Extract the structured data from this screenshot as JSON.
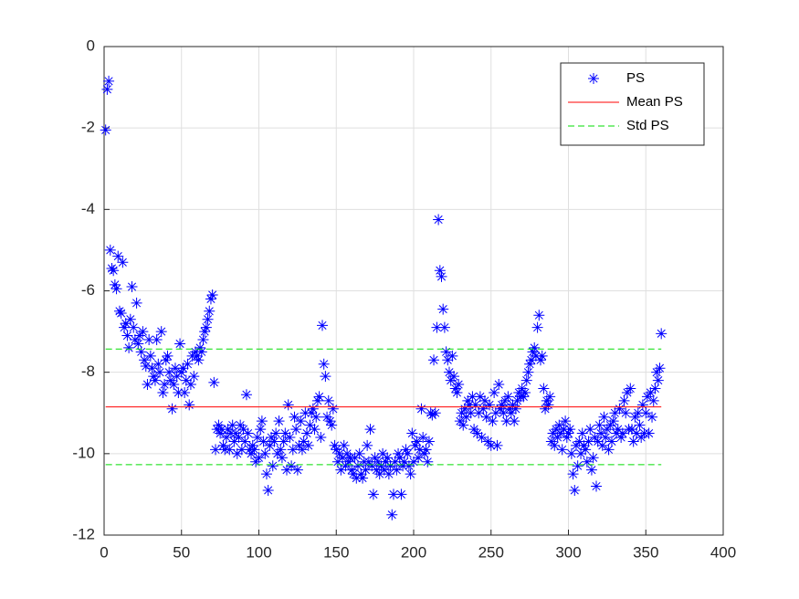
{
  "chart_data": {
    "type": "scatter",
    "xlim": [
      0,
      400
    ],
    "xticks": [
      0,
      50,
      100,
      150,
      200,
      250,
      300,
      350,
      400
    ],
    "ylim": [
      -12,
      0
    ],
    "yticks": [
      -12,
      -10,
      -8,
      -6,
      -4,
      -2,
      0
    ],
    "grid": true,
    "legend": "upper right",
    "series": [
      {
        "name": "PS",
        "color": "#0000ff",
        "marker": "*",
        "x": [
          1,
          2,
          3,
          4,
          5,
          6,
          7,
          8,
          9,
          10,
          11,
          12,
          13,
          14,
          15,
          16,
          17,
          18,
          19,
          20,
          21,
          22,
          23,
          24,
          25,
          26,
          27,
          28,
          29,
          30,
          31,
          32,
          33,
          34,
          35,
          36,
          37,
          38,
          39,
          40,
          41,
          42,
          43,
          44,
          45,
          46,
          47,
          48,
          49,
          50,
          51,
          52,
          53,
          54,
          55,
          56,
          57,
          58,
          59,
          60,
          61,
          62,
          63,
          64,
          65,
          66,
          67,
          68,
          69,
          70,
          71,
          72,
          73,
          74,
          75,
          76,
          77,
          78,
          79,
          80,
          81,
          82,
          83,
          84,
          85,
          86,
          87,
          88,
          89,
          90,
          91,
          92,
          93,
          94,
          95,
          96,
          97,
          98,
          99,
          100,
          101,
          102,
          103,
          104,
          105,
          106,
          107,
          108,
          109,
          110,
          111,
          112,
          113,
          114,
          115,
          116,
          117,
          118,
          119,
          120,
          121,
          122,
          123,
          124,
          125,
          126,
          127,
          128,
          129,
          130,
          131,
          132,
          133,
          134,
          135,
          136,
          137,
          138,
          139,
          140,
          141,
          142,
          143,
          144,
          145,
          146,
          147,
          148,
          149,
          150,
          151,
          152,
          153,
          154,
          155,
          156,
          157,
          158,
          159,
          160,
          161,
          162,
          163,
          164,
          165,
          166,
          167,
          168,
          169,
          170,
          171,
          172,
          173,
          174,
          175,
          176,
          177,
          178,
          179,
          180,
          181,
          182,
          183,
          184,
          185,
          186,
          187,
          188,
          189,
          190,
          191,
          192,
          193,
          194,
          195,
          196,
          197,
          198,
          199,
          200,
          201,
          202,
          203,
          204,
          205,
          206,
          207,
          208,
          209,
          210,
          211,
          212,
          213,
          214,
          215,
          216,
          217,
          218,
          219,
          220,
          221,
          222,
          223,
          224,
          225,
          226,
          227,
          228,
          229,
          230,
          231,
          232,
          233,
          234,
          235,
          236,
          237,
          238,
          239,
          240,
          241,
          242,
          243,
          244,
          245,
          246,
          247,
          248,
          249,
          250,
          251,
          252,
          253,
          254,
          255,
          256,
          257,
          258,
          259,
          260,
          261,
          262,
          263,
          264,
          265,
          266,
          267,
          268,
          269,
          270,
          271,
          272,
          273,
          274,
          275,
          276,
          277,
          278,
          279,
          280,
          281,
          282,
          283,
          284,
          285,
          286,
          287,
          288,
          289,
          290,
          291,
          292,
          293,
          294,
          295,
          296,
          297,
          298,
          299,
          300,
          301,
          302,
          303,
          304,
          305,
          306,
          307,
          308,
          309,
          310,
          311,
          312,
          313,
          314,
          315,
          316,
          317,
          318,
          319,
          320,
          321,
          322,
          323,
          324,
          325,
          326,
          327,
          328,
          329,
          330,
          331,
          332,
          333,
          334,
          335,
          336,
          337,
          338,
          339,
          340,
          341,
          342,
          343,
          344,
          345,
          346,
          347,
          348,
          349,
          350,
          351,
          352,
          353,
          354,
          355,
          356,
          357,
          358,
          359,
          360
        ],
        "values": [
          -2.05,
          -1.05,
          -0.85,
          -5.0,
          -5.45,
          -5.5,
          -5.85,
          -5.95,
          -5.15,
          -6.5,
          -6.55,
          -5.3,
          -6.9,
          -6.8,
          -7.1,
          -7.4,
          -6.7,
          -5.9,
          -6.9,
          -7.2,
          -6.3,
          -7.3,
          -7.1,
          -7.5,
          -7.0,
          -7.7,
          -7.85,
          -8.3,
          -7.2,
          -7.6,
          -7.9,
          -8.1,
          -8.2,
          -7.2,
          -7.8,
          -8.0,
          -7.0,
          -8.5,
          -8.3,
          -7.7,
          -7.6,
          -8.0,
          -8.2,
          -8.9,
          -8.3,
          -7.9,
          -8.1,
          -8.5,
          -7.3,
          -8.0,
          -7.9,
          -8.5,
          -8.2,
          -7.8,
          -8.8,
          -8.3,
          -7.6,
          -8.1,
          -7.5,
          -7.6,
          -7.7,
          -7.4,
          -7.5,
          -7.2,
          -7.0,
          -6.9,
          -6.7,
          -6.5,
          -6.2,
          -6.1,
          -8.25,
          -9.9,
          -9.4,
          -9.3,
          -9.5,
          -9.4,
          -9.8,
          -9.9,
          -9.6,
          -9.4,
          -9.9,
          -9.5,
          -9.3,
          -9.7,
          -9.5,
          -10.0,
          -9.6,
          -9.3,
          -9.9,
          -9.4,
          -9.7,
          -8.55,
          -9.5,
          -9.9,
          -10.0,
          -9.8,
          -9.9,
          -10.2,
          -9.6,
          -10.1,
          -9.4,
          -9.2,
          -9.7,
          -10.0,
          -10.5,
          -10.9,
          -9.8,
          -9.6,
          -10.3,
          -9.7,
          -9.5,
          -10.0,
          -9.2,
          -9.9,
          -10.1,
          -9.7,
          -9.5,
          -10.4,
          -8.8,
          -9.6,
          -10.3,
          -9.9,
          -9.1,
          -9.4,
          -10.4,
          -9.8,
          -9.2,
          -9.9,
          -9.7,
          -9.0,
          -9.5,
          -9.8,
          -9.3,
          -9.0,
          -8.9,
          -9.4,
          -9.1,
          -8.7,
          -8.6,
          -9.6,
          -6.85,
          -7.8,
          -8.1,
          -9.1,
          -8.7,
          -9.2,
          -9.3,
          -8.9,
          -9.8,
          -9.9,
          -10.2,
          -10.0,
          -10.4,
          -10.1,
          -9.8,
          -10.3,
          -10.0,
          -10.2,
          -10.1,
          -10.4,
          -10.5,
          -10.1,
          -10.6,
          -10.3,
          -10.0,
          -10.5,
          -10.6,
          -10.2,
          -10.4,
          -9.8,
          -10.2,
          -9.4,
          -10.3,
          -11.0,
          -10.1,
          -10.4,
          -10.2,
          -10.5,
          -10.3,
          -10.0,
          -10.4,
          -10.2,
          -10.1,
          -10.5,
          -10.3,
          -11.5,
          -11.0,
          -10.2,
          -10.4,
          -10.0,
          -10.1,
          -11.0,
          -10.3,
          -10.2,
          -9.9,
          -10.0,
          -10.3,
          -10.5,
          -9.5,
          -10.2,
          -9.8,
          -9.7,
          -10.1,
          -9.9,
          -8.9,
          -9.6,
          -10.0,
          -9.9,
          -10.2,
          -9.7,
          -9.0,
          -9.05,
          -7.7,
          -9.0,
          -6.9,
          -4.25,
          -5.5,
          -5.65,
          -6.45,
          -6.9,
          -7.5,
          -7.7,
          -8.0,
          -8.2,
          -7.6,
          -8.1,
          -8.4,
          -8.5,
          -8.3,
          -9.2,
          -9.0,
          -9.3,
          -8.9,
          -9.1,
          -8.7,
          -8.8,
          -9.0,
          -8.6,
          -9.4,
          -8.8,
          -9.5,
          -9.0,
          -8.6,
          -9.6,
          -8.9,
          -8.7,
          -9.1,
          -9.7,
          -8.8,
          -9.8,
          -9.2,
          -8.5,
          -9.0,
          -9.8,
          -8.3,
          -8.9,
          -8.8,
          -9.0,
          -8.7,
          -9.2,
          -8.6,
          -8.9,
          -9.0,
          -8.8,
          -9.2,
          -8.9,
          -8.7,
          -8.5,
          -8.6,
          -8.4,
          -8.6,
          -8.5,
          -8.2,
          -8.0,
          -7.8,
          -7.7,
          -7.5,
          -7.4,
          -7.6,
          -6.9,
          -6.6,
          -7.7,
          -7.6,
          -8.4,
          -8.9,
          -8.7,
          -8.8,
          -8.6,
          -9.7,
          -9.5,
          -9.8,
          -9.4,
          -9.6,
          -9.3,
          -9.5,
          -9.9,
          -9.4,
          -9.2,
          -9.6,
          -9.5,
          -9.4,
          -10.0,
          -10.5,
          -10.9,
          -9.8,
          -10.3,
          -9.7,
          -10.0,
          -9.5,
          -9.8,
          -9.9,
          -10.2,
          -9.7,
          -9.4,
          -10.4,
          -10.1,
          -9.6,
          -10.8,
          -9.7,
          -9.3,
          -9.5,
          -9.8,
          -9.1,
          -9.6,
          -9.4,
          -9.9,
          -9.3,
          -9.7,
          -9.2,
          -9.0,
          -9.5,
          -9.4,
          -8.9,
          -9.6,
          -9.5,
          -8.7,
          -9.0,
          -8.5,
          -9.4,
          -8.4,
          -9.4,
          -9.7,
          -9.1,
          -9.5,
          -9.0,
          -9.3,
          -9.6,
          -8.8,
          -9.5,
          -9.0,
          -8.6,
          -9.5,
          -8.5,
          -9.1,
          -8.7,
          -8.4,
          -8.0,
          -8.2,
          -7.9,
          -7.05
        ]
      },
      {
        "name": "Mean PS",
        "color": "#ff0000",
        "linestyle": "solid",
        "x": [
          1,
          360
        ],
        "values": [
          -8.85,
          -8.85
        ]
      },
      {
        "name": "Std PS",
        "color": "#00dd00",
        "linestyle": "dashed",
        "x": [
          1,
          360,
          null,
          1,
          360
        ],
        "values": [
          -7.43,
          -7.43,
          null,
          -10.27,
          -10.27
        ]
      }
    ]
  }
}
